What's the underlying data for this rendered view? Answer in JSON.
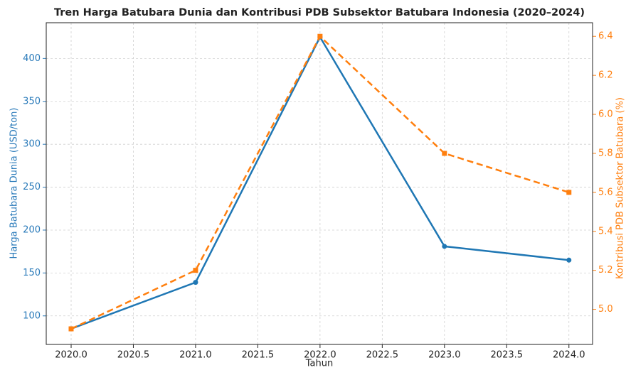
{
  "chart_data": {
    "type": "line",
    "title": "Tren Harga Batubara Dunia dan Kontribusi PDB Subsektor Batubara Indonesia (2020–2024)",
    "xlabel": "Tahun",
    "ylabel": "Harga Batubara Dunia (USD/ton)",
    "y2label": "Kontribusi PDB Subsektor Batubara (%)",
    "x": [
      2020,
      2021,
      2022,
      2023,
      2024
    ],
    "series": [
      {
        "name": "Harga Batubara Dunia (USD/ton)",
        "color": "#1f77b4",
        "axis": "y",
        "linestyle": "solid",
        "marker": "circle",
        "values": [
          85,
          139,
          425,
          181,
          165
        ]
      },
      {
        "name": "Kontribusi PDB Subsektor Batubara (%)",
        "color": "#ff7f0e",
        "axis": "y2",
        "linestyle": "dashed",
        "marker": "square",
        "values": [
          4.9,
          5.2,
          6.4,
          5.8,
          5.6
        ]
      }
    ],
    "xlim": [
      2019.8,
      2024.19
    ],
    "xticks": [
      {
        "value": 2020,
        "label": "2020.0"
      },
      {
        "value": 2020.5,
        "label": "2020.5"
      },
      {
        "value": 2021,
        "label": "2021.0"
      },
      {
        "value": 2021.5,
        "label": "2021.5"
      },
      {
        "value": 2022,
        "label": "2022.0"
      },
      {
        "value": 2022.5,
        "label": "2022.5"
      },
      {
        "value": 2023,
        "label": "2023.0"
      },
      {
        "value": 2023.5,
        "label": "2023.5"
      },
      {
        "value": 2024,
        "label": "2024.0"
      }
    ],
    "ylim": [
      66.7,
      441.7
    ],
    "yticks": [
      100,
      150,
      200,
      250,
      300,
      350,
      400
    ],
    "y2lim": [
      4.82,
      6.47
    ],
    "y2ticks": [
      {
        "value": 5.0,
        "label": "5.0"
      },
      5.2,
      5.4,
      5.6,
      5.8,
      {
        "value": 6.0,
        "label": "6.0"
      },
      6.2,
      6.4
    ],
    "grid": true,
    "ycolor": "#2b7bba",
    "y2color": "#ff7f0e"
  }
}
